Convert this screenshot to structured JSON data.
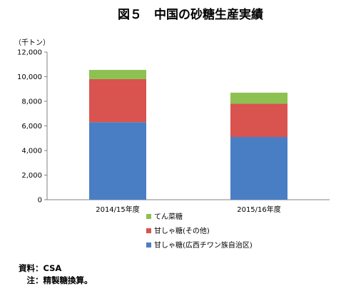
{
  "chart_data": {
    "type": "bar",
    "stacked": true,
    "title": "図５　中国の砂糖生産実績",
    "unit_label": "（千トン）",
    "categories": [
      "2014/15年度",
      "2015/16年度"
    ],
    "series": [
      {
        "name": "甘しゃ糖(広西チワン族自治区)",
        "values": [
          6300,
          5100
        ],
        "color": "#4a7ec4"
      },
      {
        "name": "甘しゃ糖(その他)",
        "values": [
          3500,
          2700
        ],
        "color": "#d9534f"
      },
      {
        "name": "てん菜糖",
        "values": [
          750,
          900
        ],
        "color": "#8dc152"
      }
    ],
    "ylim": [
      0,
      12000
    ],
    "yticks": [
      "0",
      "2,000",
      "4,000",
      "6,000",
      "8,000",
      "10,000",
      "12,000"
    ],
    "grid": false,
    "legend_position": "bottom"
  },
  "notes": {
    "source": "資料：CSA",
    "note": "　注：精製糖換算。"
  }
}
